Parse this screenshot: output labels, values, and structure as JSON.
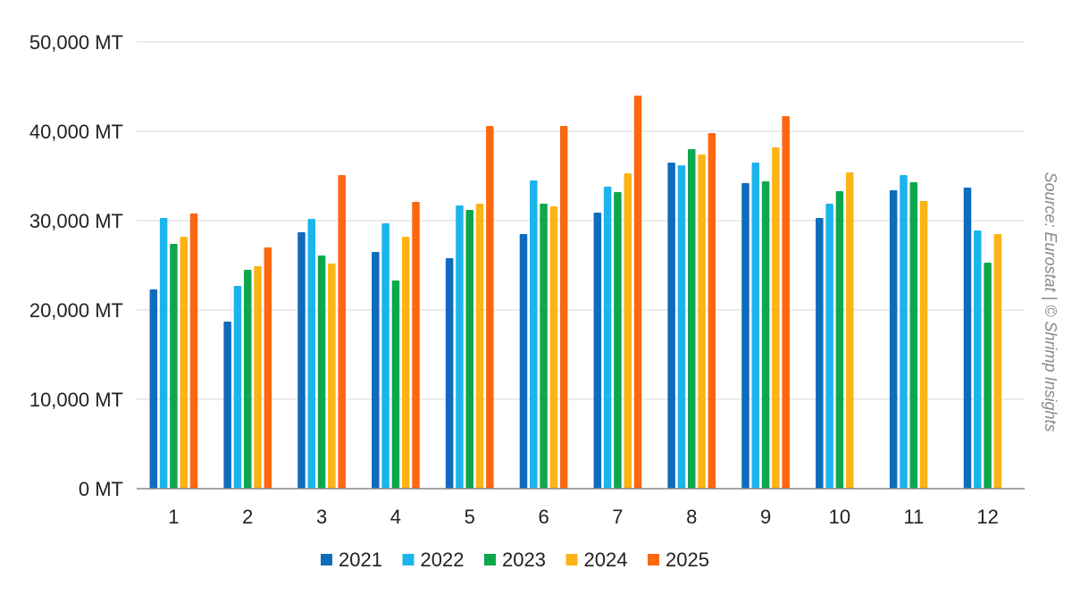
{
  "source": "Source: Eurostat | © Shrimp Insights",
  "chart_data": {
    "type": "bar",
    "title": "",
    "xlabel": "",
    "ylabel": "",
    "ylim": [
      0,
      50000
    ],
    "y_ticks": [
      0,
      10000,
      20000,
      30000,
      40000,
      50000
    ],
    "y_tick_labels": [
      "0 MT",
      "10,000 MT",
      "20,000 MT",
      "30,000 MT",
      "40,000 MT",
      "50,000 MT"
    ],
    "grid": true,
    "legend_position": "bottom",
    "categories": [
      "1",
      "2",
      "3",
      "4",
      "5",
      "6",
      "7",
      "8",
      "9",
      "10",
      "11",
      "12"
    ],
    "series": [
      {
        "name": "2021",
        "color": "#0f6cbd",
        "values": [
          22300,
          18700,
          28700,
          26500,
          25800,
          28500,
          30900,
          36500,
          34200,
          30300,
          33400,
          33700
        ]
      },
      {
        "name": "2022",
        "color": "#1cb4ec",
        "values": [
          30300,
          22700,
          30200,
          29700,
          31700,
          34500,
          33800,
          36200,
          36500,
          31900,
          35100,
          28900
        ]
      },
      {
        "name": "2023",
        "color": "#0ea64e",
        "values": [
          27400,
          24500,
          26100,
          23300,
          31200,
          31900,
          33200,
          38000,
          34400,
          33300,
          34300,
          25300
        ]
      },
      {
        "name": "2024",
        "color": "#fbb316",
        "values": [
          28200,
          24900,
          25200,
          28200,
          31900,
          31600,
          35300,
          37400,
          38200,
          35400,
          32200,
          28500
        ]
      },
      {
        "name": "2025",
        "color": "#fc6710",
        "values": [
          30800,
          27000,
          35100,
          32100,
          40600,
          40600,
          44000,
          39800,
          41700,
          null,
          null,
          null
        ]
      }
    ]
  }
}
